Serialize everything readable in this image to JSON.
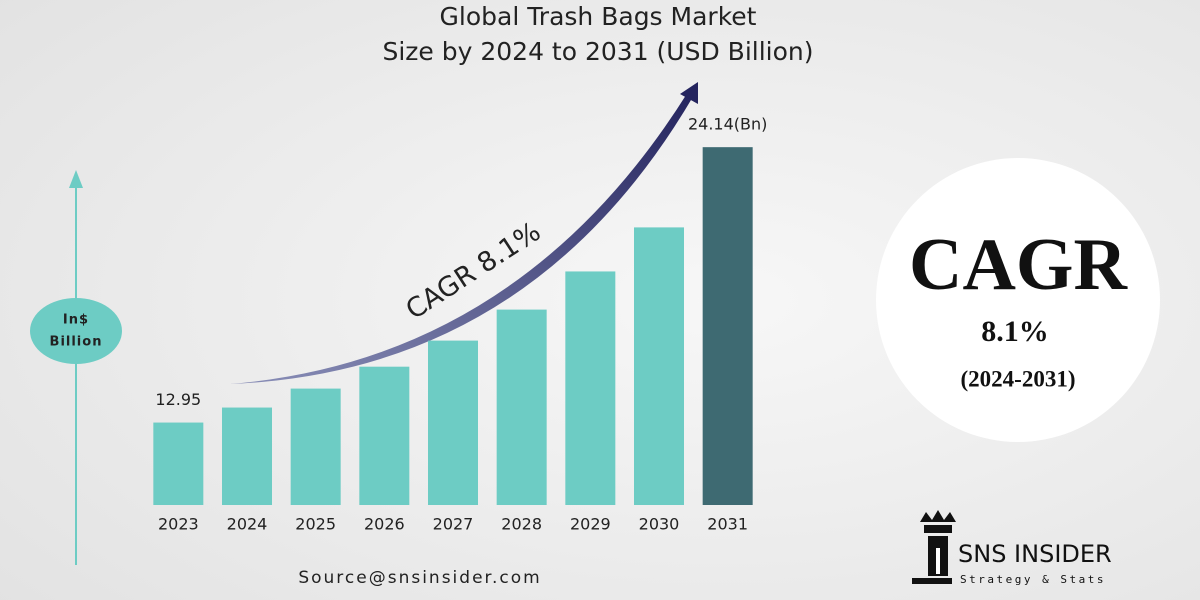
{
  "chart_data": {
    "type": "bar",
    "title": [
      "Global Trash Bags Market",
      "Size by 2024 to 2031 (USD Billion)"
    ],
    "y_label": [
      "In$",
      "Billion"
    ],
    "categories": [
      "2023",
      "2024",
      "2025",
      "2026",
      "2027",
      "2028",
      "2029",
      "2030",
      "2031"
    ],
    "values": [
      12.95,
      13.56,
      14.33,
      15.22,
      16.28,
      17.54,
      19.09,
      20.88,
      24.14
    ],
    "value_labels": [
      "12.95",
      null,
      null,
      null,
      null,
      null,
      null,
      null,
      "24.14(Bn)"
    ],
    "colors": [
      "#6dccc4",
      "#6dccc4",
      "#6dccc4",
      "#6dccc4",
      "#6dccc4",
      "#6dccc4",
      "#6dccc4",
      "#6dccc4",
      "#3e6a72"
    ],
    "ylim": [
      9.6,
      25
    ],
    "arrow_annotation": "CAGR 8.1%",
    "badge": {
      "title": "CAGR",
      "rate": "8.1%",
      "period": "(2024-2031)"
    },
    "source": "Source@snsinsider.com",
    "logo": {
      "name": "SNS INSIDER",
      "tagline": "Strategy & Stats"
    }
  }
}
